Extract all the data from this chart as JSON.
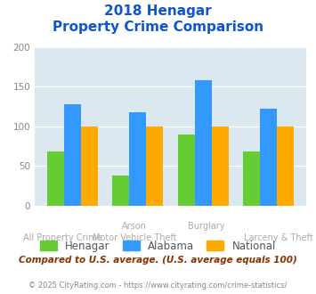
{
  "title_line1": "2018 Henagar",
  "title_line2": "Property Crime Comparison",
  "top_labels": [
    "",
    "Arson",
    "Burglary",
    ""
  ],
  "bottom_labels": [
    "All Property Crime",
    "Motor Vehicle Theft",
    "",
    "Larceny & Theft"
  ],
  "henagar": [
    68,
    38,
    90,
    68
  ],
  "alabama": [
    128,
    118,
    158,
    122
  ],
  "national": [
    100,
    100,
    100,
    100
  ],
  "henagar_color": "#66cc33",
  "alabama_color": "#3399ff",
  "national_color": "#ffaa00",
  "ylim": [
    0,
    200
  ],
  "yticks": [
    0,
    50,
    100,
    150,
    200
  ],
  "background_color": "#dce8f0",
  "title_color": "#1155cc",
  "legend_labels": [
    "Henagar",
    "Alabama",
    "National"
  ],
  "legend_label_color": "#555555",
  "footer_text": "Compared to U.S. average. (U.S. average equals 100)",
  "copyright_text": "© 2025 CityRating.com - https://www.cityrating.com/crime-statistics/",
  "footer_color": "#883300",
  "copyright_color": "#888888",
  "xtick_color": "#aaaaaa",
  "ytick_color": "#888888",
  "grid_color": "#ffffff",
  "bar_width": 0.22,
  "group_positions": [
    0,
    0.85,
    1.7,
    2.55
  ]
}
